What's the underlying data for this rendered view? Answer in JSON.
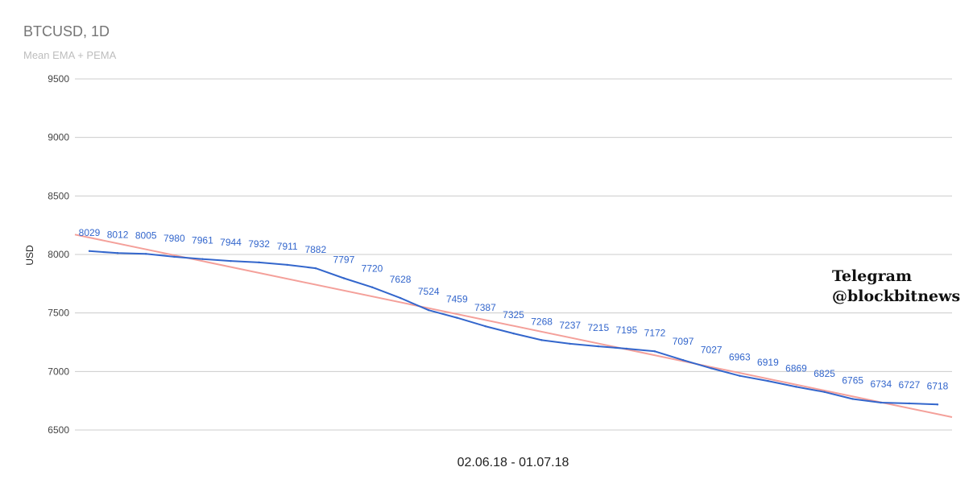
{
  "chart_data": {
    "type": "line",
    "title": "BTCUSD, 1D",
    "subtitle": "Mean EMA + PEMA",
    "xlabel": "02.06.18 - 01.07.18",
    "ylabel": "USD",
    "ylim": [
      6500,
      9500
    ],
    "yticks": [
      6500,
      7000,
      7500,
      8000,
      8500,
      9000,
      9500
    ],
    "grid": true,
    "series": [
      {
        "color": "#3366cc",
        "values": [
          8029,
          8012,
          8005,
          7980,
          7961,
          7944,
          7932,
          7911,
          7882,
          7797,
          7720,
          7628,
          7524,
          7459,
          7387,
          7325,
          7268,
          7237,
          7215,
          7195,
          7172,
          7097,
          7027,
          6963,
          6919,
          6869,
          6825,
          6765,
          6734,
          6727,
          6718
        ],
        "labels": [
          "8029",
          "8012",
          "8005",
          "7980",
          "7961",
          "7944",
          "7932",
          "7911",
          "7882",
          "7797",
          "7720",
          "7628",
          "7524",
          "7459",
          "7387",
          "7325",
          "7268",
          "7237",
          "7215",
          "7195",
          "7172",
          "7097",
          "7027",
          "6963",
          "6919",
          "6869",
          "6825",
          "6765",
          "6734",
          "6727",
          "6718"
        ]
      },
      {
        "color": "#f4a09a",
        "values": [
          8170,
          6610
        ]
      }
    ]
  },
  "watermark": {
    "line1": "Telegram",
    "line2": "@blockbitnews"
  }
}
